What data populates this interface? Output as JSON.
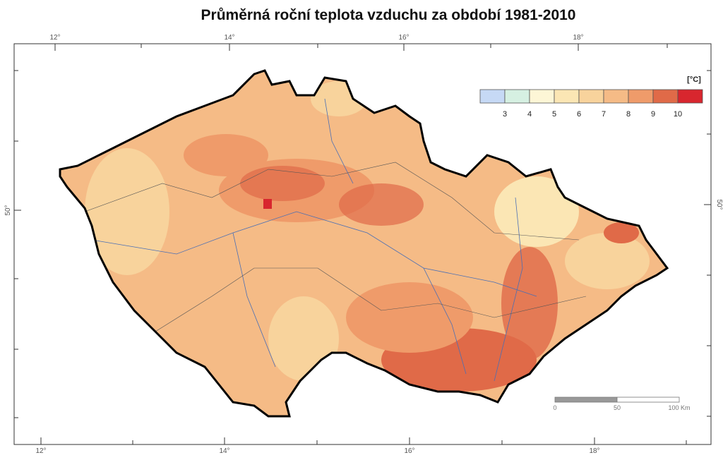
{
  "header": {
    "title": "Průměrná roční teplota vzduchu za období 1981-2010"
  },
  "graticule": {
    "top": [
      "12°",
      "14°",
      "16°",
      "18°"
    ],
    "bottom": [
      "12°",
      "14°",
      "16°",
      "18°"
    ],
    "left": "50°",
    "right": "50°"
  },
  "legend": {
    "unit": "[°C]",
    "boundaries": [
      "3",
      "4",
      "5",
      "6",
      "7",
      "8",
      "9",
      "10"
    ],
    "colors": [
      "#c6d9f5",
      "#d6f0e2",
      "#fdf6d6",
      "#fbe6b4",
      "#f8d39c",
      "#f5bb86",
      "#ef9b6a",
      "#e06a48",
      "#d8262e"
    ]
  },
  "scale_bar": {
    "labels": [
      "0",
      "50",
      "100 Km"
    ]
  }
}
